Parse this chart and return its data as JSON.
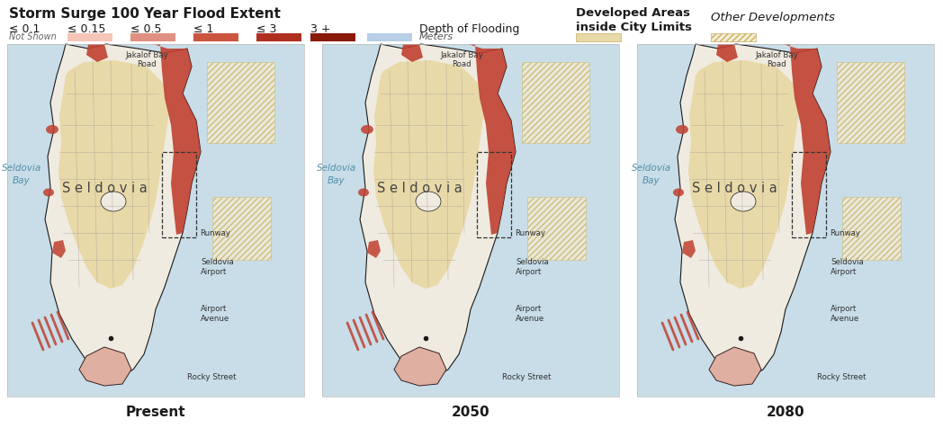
{
  "title": "Storm Surge 100 Year Flood Extent",
  "title_fontsize": 11,
  "title_fontweight": "bold",
  "fig_bg": "#ffffff",
  "panel_labels": [
    "Present",
    "2050",
    "2080"
  ],
  "panel_label_fontsize": 11,
  "panel_label_fontweight": "bold",
  "flood_labels": [
    "≤ 0.1",
    "≤ 0.15",
    "≤ 0.5",
    "≤ 1",
    "≤ 3",
    "3 +"
  ],
  "flood_sublabels": [
    "Not Shown",
    "",
    "",
    "",
    "",
    ""
  ],
  "flood_colors": [
    "none",
    "#f5c5b8",
    "#e09080",
    "#cc5540",
    "#b03020",
    "#8a1a0a"
  ],
  "dof_label": "Depth of Flooding",
  "dof_sublabel": "Meters",
  "dof_color": "#b8cfe8",
  "dev_areas_label": "Developed Areas\ninside City Limits",
  "other_dev_label": "Other Developments",
  "dev_areas_color": "#e8d9a8",
  "hatch_color": "#c8b060",
  "hatch_bg": "#f5edd5",
  "outline_color": "#1a1a1a",
  "road_color": "#999999",
  "bay_text_color": "#5090a8",
  "city_text_color": "#444444",
  "small_text_color": "#333333",
  "water_color": "#c8dde8",
  "land_color": "#f0ebe0",
  "city_fill": "#e8d9a8",
  "flood_map_color": "#c04030",
  "map_panels": [
    {
      "label_bay": "Seldovia\nBay",
      "label_city": "S e l d o v i a",
      "label_airport": "Seldovia\nAirport",
      "label_road": "Jakalof Bay\nRoad",
      "label_runway": "Runway",
      "label_avenue": "Airport\nAvenue",
      "label_rocky": "Rocky Street"
    },
    {
      "label_bay": "Seldovia\nBay",
      "label_city": "S e l d o v i a",
      "label_airport": "Seldovia\nAirport",
      "label_road": "Jakalof Bay\nRoad",
      "label_runway": "Runway",
      "label_avenue": "Airport\nAvenue",
      "label_rocky": "Rocky Street"
    },
    {
      "label_bay": "Seldovia\nBay",
      "label_city": "S e l d o v i a",
      "label_airport": "Seldovia\nAirport",
      "label_road": "Jakalof Bay\nRoad",
      "label_runway": "Runway",
      "label_avenue": "Airport\nAvenue",
      "label_rocky": "Rocky Street"
    }
  ]
}
